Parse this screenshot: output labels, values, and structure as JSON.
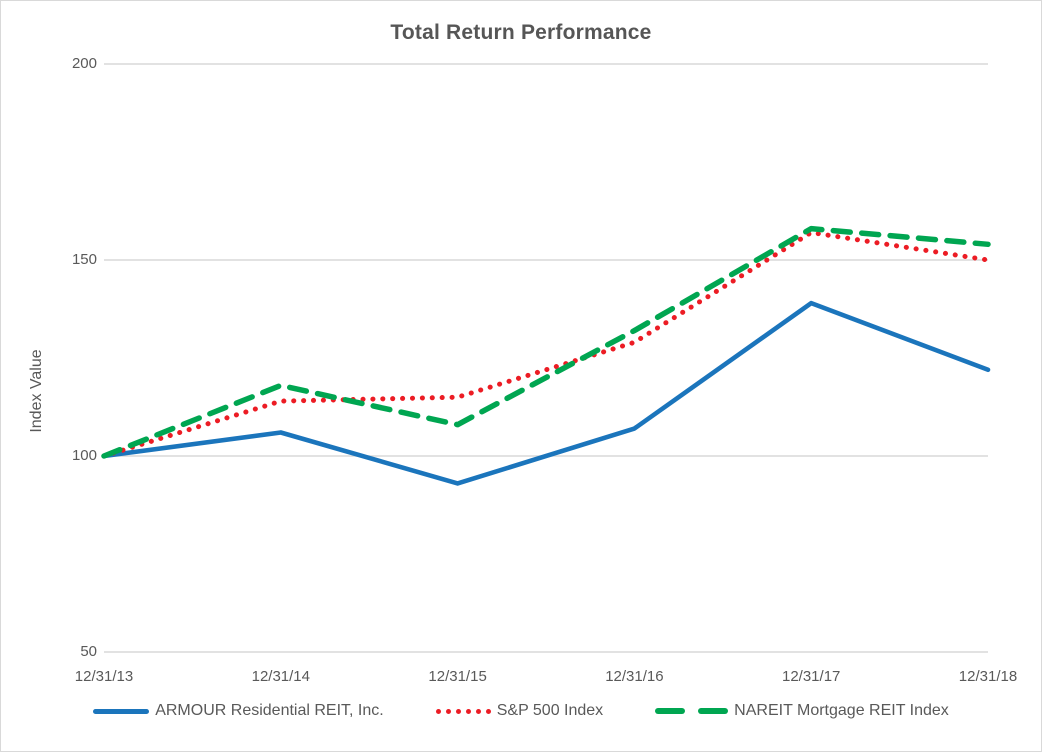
{
  "chart_data": {
    "type": "line",
    "title": "Total Return Performance",
    "xlabel": "",
    "ylabel": "Index Value",
    "categories": [
      "12/31/13",
      "12/31/14",
      "12/31/15",
      "12/31/16",
      "12/31/17",
      "12/31/18"
    ],
    "ylim": [
      50,
      200
    ],
    "yticks": [
      50,
      100,
      150,
      200
    ],
    "grid": "horizontal gridlines at each y tick",
    "legend_position": "bottom center",
    "series": [
      {
        "name": "ARMOUR Residential REIT, Inc.",
        "style": "solid",
        "color": "#1b75bc",
        "values": [
          100,
          106,
          93,
          107,
          139,
          122
        ]
      },
      {
        "name": "S&P 500 Index",
        "style": "dotted",
        "color": "#ec1c24",
        "values": [
          100,
          114,
          115,
          129,
          157,
          150
        ]
      },
      {
        "name": "NAREIT Mortgage REIT Index",
        "style": "dashed",
        "color": "#00a651",
        "values": [
          100,
          118,
          108,
          132,
          158,
          154
        ]
      }
    ],
    "colors": {
      "gridline": "#d9d9d9",
      "axis_text": "#595959",
      "title_text": "#565656",
      "background": "#ffffff",
      "border": "#d9d9d9"
    }
  }
}
